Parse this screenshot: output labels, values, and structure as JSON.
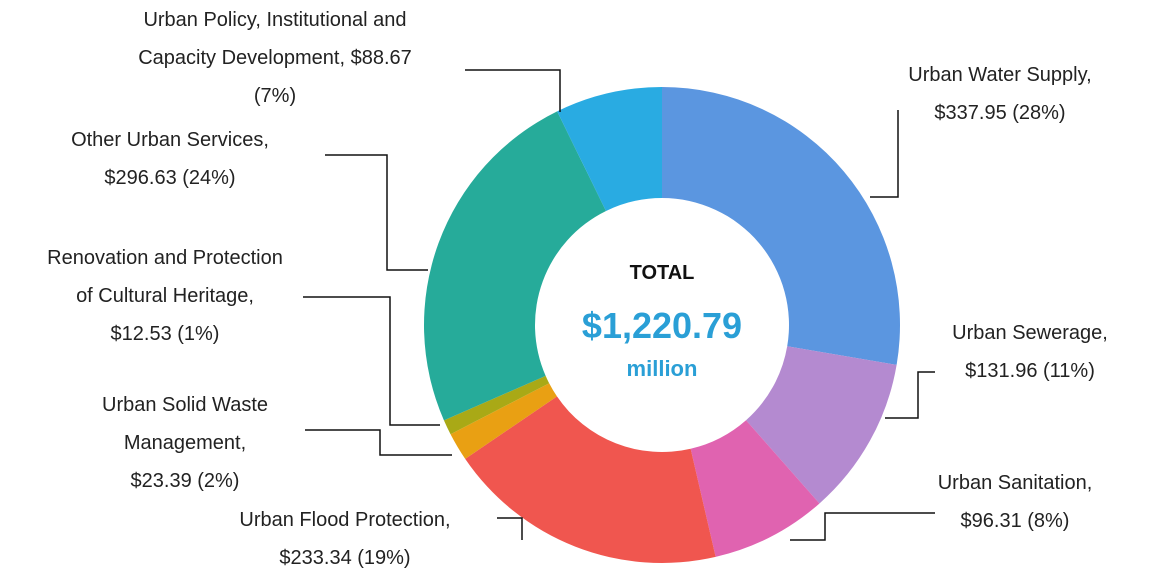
{
  "chart_data": {
    "type": "donut",
    "categories": [
      "Urban Water Supply,",
      "Urban Sewerage,",
      "Urban Sanitation,",
      "Urban Flood Protection,",
      "Urban Solid Waste Management,",
      "Renovation and Protection of Cultural Heritage,",
      "Other Urban Services,",
      "Urban Policy, Institutional and Capacity Development,"
    ],
    "values": [
      337.95,
      131.96,
      96.31,
      233.34,
      23.39,
      12.53,
      296.63,
      88.67
    ],
    "value_labels": [
      "$337.95 (28%)",
      "$131.96 (11%)",
      "$96.31 (8%)",
      "$233.34 (19%)",
      "$23.39 (2%)",
      "$12.53 (1%)",
      "$296.63 (24%)",
      "$88.67 (7%)"
    ],
    "colors": [
      "#5b96e0",
      "#b48ad0",
      "#e063b0",
      "#f0564f",
      "#e9a013",
      "#a9a916",
      "#26ab9a",
      "#29abe2"
    ],
    "center": {
      "title": "TOTAL",
      "total": {
        "value": 1220.79,
        "label": "$1,220.79"
      },
      "unit": "million"
    }
  }
}
